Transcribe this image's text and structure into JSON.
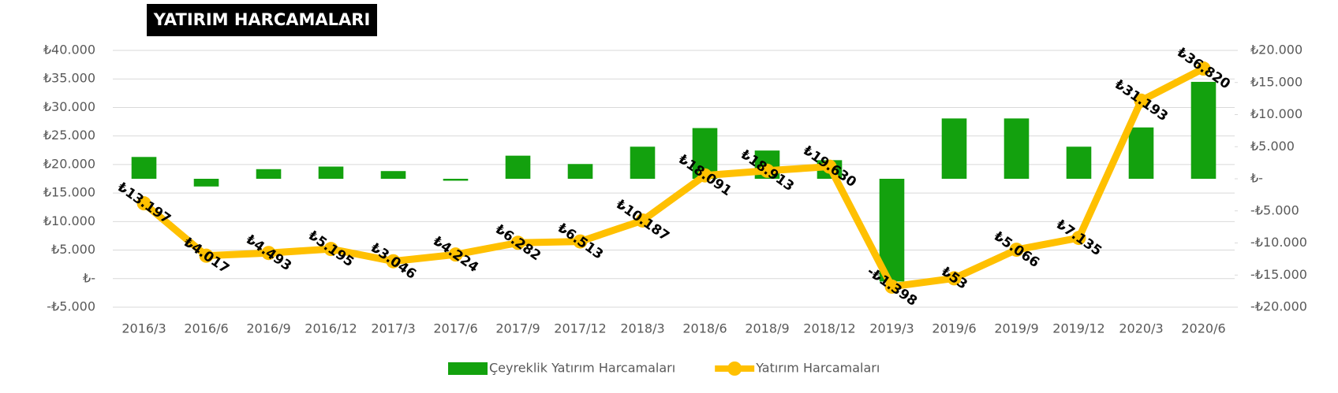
{
  "chart_data": {
    "type": "combo",
    "title": "YATIRIM HARCAMALARI",
    "categories": [
      "2016/3",
      "2016/6",
      "2016/9",
      "2016/12",
      "2017/3",
      "2017/6",
      "2017/9",
      "2017/12",
      "2018/3",
      "2018/6",
      "2018/9",
      "2018/12",
      "2019/3",
      "2019/6",
      "2019/9",
      "2019/12",
      "2020/3",
      "2020/6"
    ],
    "series": [
      {
        "name": "Çeyreklik Yatırım Harcamaları",
        "type": "bar",
        "axis": "y2",
        "color": "#13a10e",
        "values": [
          3400,
          -1200,
          1500,
          1900,
          1200,
          -300,
          3600,
          2300,
          5000,
          7900,
          4400,
          2900,
          -16000,
          9400,
          9400,
          5000,
          8000,
          15100
        ]
      },
      {
        "name": "Yatırım Harcamaları",
        "type": "line",
        "axis": "y",
        "color": "#ffc000",
        "values": [
          13197,
          4017,
          4493,
          5195,
          3046,
          4224,
          6282,
          6513,
          10187,
          18091,
          18913,
          19630,
          -1398,
          53,
          5066,
          7135,
          31193,
          36820
        ],
        "value_labels": [
          "₺13.197",
          "₺4.017",
          "₺4.493",
          "₺5.195",
          "₺3.046",
          "₺4.224",
          "₺6.282",
          "₺6.513",
          "₺10.187",
          "₺18.091",
          "₺18.913",
          "₺19.630",
          "-₺1.398",
          "₺53",
          "₺5.066",
          "₺7.135",
          "₺31.193",
          "₺36.820"
        ]
      }
    ],
    "ylim": [
      -5000,
      40000
    ],
    "yticks": [
      {
        "value": -5000,
        "label": "-₺5.000"
      },
      {
        "value": 0,
        "label": "₺-"
      },
      {
        "value": 5000,
        "label": "₺5.000"
      },
      {
        "value": 10000,
        "label": "₺10.000"
      },
      {
        "value": 15000,
        "label": "₺15.000"
      },
      {
        "value": 20000,
        "label": "₺20.000"
      },
      {
        "value": 25000,
        "label": "₺25.000"
      },
      {
        "value": 30000,
        "label": "₺30.000"
      },
      {
        "value": 35000,
        "label": "₺35.000"
      },
      {
        "value": 40000,
        "label": "₺40.000"
      }
    ],
    "y2lim": [
      -20000,
      20000
    ],
    "y2ticks": [
      {
        "value": -20000,
        "label": "-₺20.000"
      },
      {
        "value": -15000,
        "label": "-₺15.000"
      },
      {
        "value": -10000,
        "label": "-₺10.000"
      },
      {
        "value": -5000,
        "label": "-₺5.000"
      },
      {
        "value": 0,
        "label": "₺-"
      },
      {
        "value": 5000,
        "label": "₺5.000"
      },
      {
        "value": 10000,
        "label": "₺10.000"
      },
      {
        "value": 15000,
        "label": "₺15.000"
      },
      {
        "value": 20000,
        "label": "₺20.000"
      }
    ],
    "grid": true,
    "legend": "bottom"
  }
}
